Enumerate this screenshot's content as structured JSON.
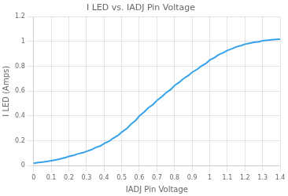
{
  "chart_data": {
    "type": "line",
    "title": "I LED vs. IADJ Pin Voltage",
    "x_label": "IADJ Pin Voltage",
    "y_label": "I LED (Amps)",
    "x": [
      0.0,
      0.02,
      0.05,
      0.08,
      0.1,
      0.13,
      0.15,
      0.18,
      0.2,
      0.23,
      0.25,
      0.28,
      0.3,
      0.33,
      0.35,
      0.38,
      0.4,
      0.43,
      0.45,
      0.48,
      0.5,
      0.53,
      0.55,
      0.58,
      0.6,
      0.63,
      0.65,
      0.68,
      0.7,
      0.73,
      0.75,
      0.78,
      0.8,
      0.83,
      0.85,
      0.88,
      0.9,
      0.93,
      0.95,
      0.98,
      1.0,
      1.03,
      1.05,
      1.08,
      1.1,
      1.13,
      1.15,
      1.18,
      1.2,
      1.23,
      1.25,
      1.28,
      1.3,
      1.33,
      1.35,
      1.38,
      1.4
    ],
    "values": [
      0.02,
      0.025,
      0.03,
      0.035,
      0.04,
      0.048,
      0.055,
      0.065,
      0.075,
      0.085,
      0.095,
      0.105,
      0.115,
      0.13,
      0.145,
      0.16,
      0.178,
      0.198,
      0.22,
      0.245,
      0.27,
      0.3,
      0.33,
      0.365,
      0.4,
      0.435,
      0.465,
      0.495,
      0.525,
      0.558,
      0.585,
      0.615,
      0.645,
      0.675,
      0.7,
      0.727,
      0.752,
      0.777,
      0.8,
      0.825,
      0.85,
      0.873,
      0.893,
      0.912,
      0.928,
      0.943,
      0.956,
      0.968,
      0.978,
      0.987,
      0.993,
      0.998,
      1.005,
      1.01,
      1.013,
      1.016,
      1.018
    ],
    "xlim": [
      0,
      1.4
    ],
    "ylim": [
      0,
      1.2
    ],
    "xticks": [
      0,
      0.1,
      0.2,
      0.3,
      0.4,
      0.5,
      0.6,
      0.7,
      0.8,
      0.9,
      1,
      1.1,
      1.2,
      1.3,
      1.4
    ],
    "yticks": [
      0,
      0.2,
      0.4,
      0.6,
      0.8,
      1,
      1.2
    ],
    "grid": true
  }
}
